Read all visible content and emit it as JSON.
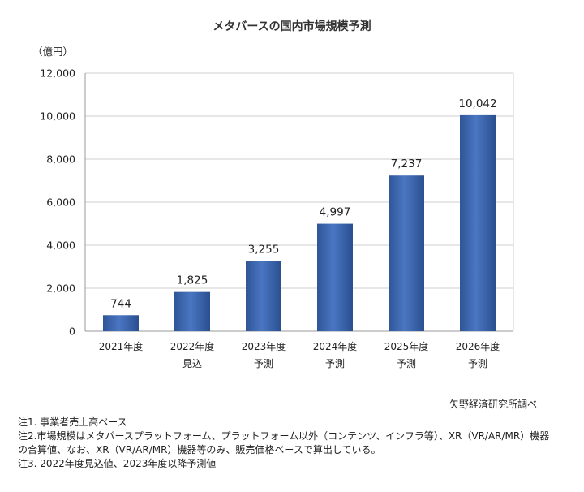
{
  "chart_data": {
    "type": "bar",
    "title": "メタバースの国内市場規模予測",
    "ylabel": "（億円）",
    "xlabel": "",
    "ylim": [
      0,
      12000
    ],
    "yticks": [
      "0",
      "2,000",
      "4,000",
      "6,000",
      "8,000",
      "10,000",
      "12,000"
    ],
    "ytick_values": [
      0,
      2000,
      4000,
      6000,
      8000,
      10000,
      12000
    ],
    "categories": [
      {
        "line1": "2021年度",
        "line2": ""
      },
      {
        "line1": "2022年度",
        "line2": "見込"
      },
      {
        "line1": "2023年度",
        "line2": "予測"
      },
      {
        "line1": "2024年度",
        "line2": "予測"
      },
      {
        "line1": "2025年度",
        "line2": "予測"
      },
      {
        "line1": "2026年度",
        "line2": "予測"
      }
    ],
    "values": [
      744,
      1825,
      3255,
      4997,
      7237,
      10042
    ],
    "value_labels": [
      "744",
      "1,825",
      "3,255",
      "4,997",
      "7,237",
      "10,042"
    ],
    "bar_color": "#3a62a8",
    "grid": true,
    "legend": "none"
  },
  "source": "矢野経済研究所調べ",
  "notes": [
    "注1. 事業者売上高ベース",
    "注2.市場規模はメタバースプラットフォーム、プラットフォーム以外（コンテンツ、インフラ等）、XR（VR/AR/MR）機器",
    "の合算値、なお、XR（VR/AR/MR）機器等のみ、販売価格ベースで算出している。",
    "注3. 2022年度見込値、2023年度以降予測値"
  ]
}
